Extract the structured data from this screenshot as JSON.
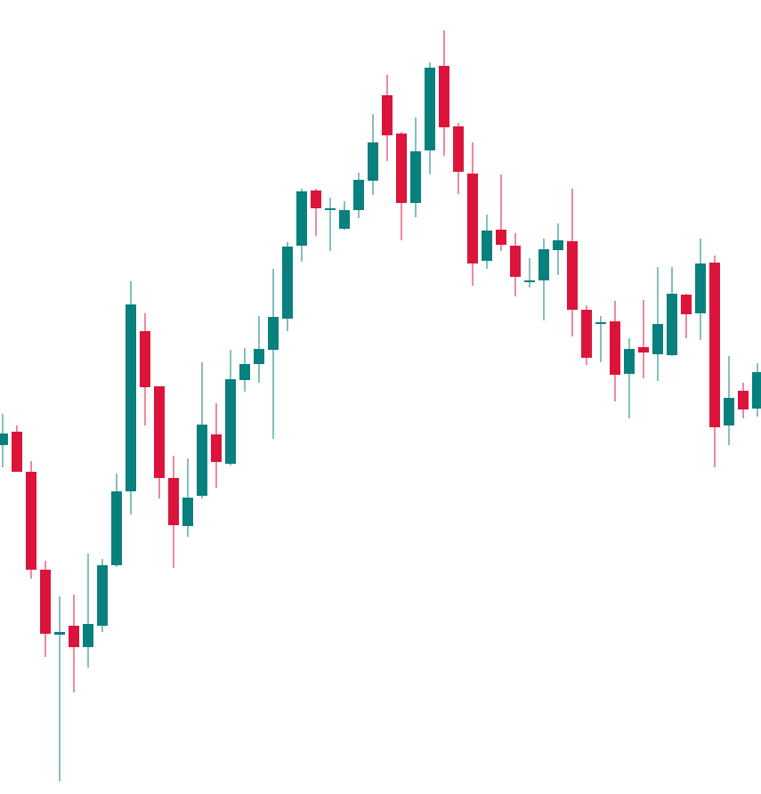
{
  "chart_data": {
    "type": "candlestick",
    "up_color": "#08807d",
    "down_color": "#dc143c",
    "ylim": [
      0,
      887
    ],
    "open": [
      387,
      402,
      357,
      247,
      174,
      184,
      160,
      184,
      252,
      335,
      515,
      453,
      350,
      296,
      330,
      399,
      366,
      460,
      478,
      494,
      529,
      611,
      673,
      652,
      630,
      651,
      684,
      780,
      737,
      659,
      718,
      813,
      745,
      692,
      594,
      629,
      611,
      570,
      572,
      606,
      616,
      539,
      523,
      526,
      467,
      497,
      489,
      488,
      556,
      535,
      592,
      409,
      448,
      428
    ],
    "high": [
      422,
      409,
      369,
      257,
      217,
      219,
      265,
      259,
      355,
      571,
      535,
      453,
      375,
      372,
      480,
      434,
      494,
      496,
      532,
      585,
      615,
      675,
      675,
      665,
      661,
      693,
      759,
      803,
      739,
      755,
      817,
      853,
      749,
      727,
      646,
      691,
      625,
      597,
      619,
      636,
      675,
      544,
      532,
      549,
      507,
      550,
      587,
      587,
      557,
      619,
      600,
      487,
      457,
      479
    ],
    "low": [
      362,
      357,
      237,
      149,
      9,
      109,
      137,
      177,
      250,
      309,
      409,
      327,
      249,
      284,
      327,
      339,
      364,
      447,
      457,
      394,
      515,
      593,
      622,
      605,
      629,
      642,
      668,
      706,
      617,
      643,
      691,
      712,
      669,
      566,
      585,
      605,
      554,
      564,
      527,
      578,
      509,
      477,
      480,
      436,
      417,
      462,
      459,
      487,
      507,
      505,
      362,
      387,
      417,
      419
    ],
    "close": [
      400,
      357,
      247,
      175,
      177,
      160,
      186,
      252,
      335,
      545,
      452,
      350,
      297,
      328,
      410,
      368,
      461,
      478,
      495,
      531,
      610,
      672,
      653,
      653,
      651,
      685,
      727,
      735,
      659,
      717,
      811,
      744,
      694,
      591,
      628,
      612,
      576,
      572,
      607,
      617,
      539,
      485,
      525,
      466,
      495,
      491,
      523,
      557,
      534,
      591,
      407,
      440,
      427,
      469
    ]
  }
}
